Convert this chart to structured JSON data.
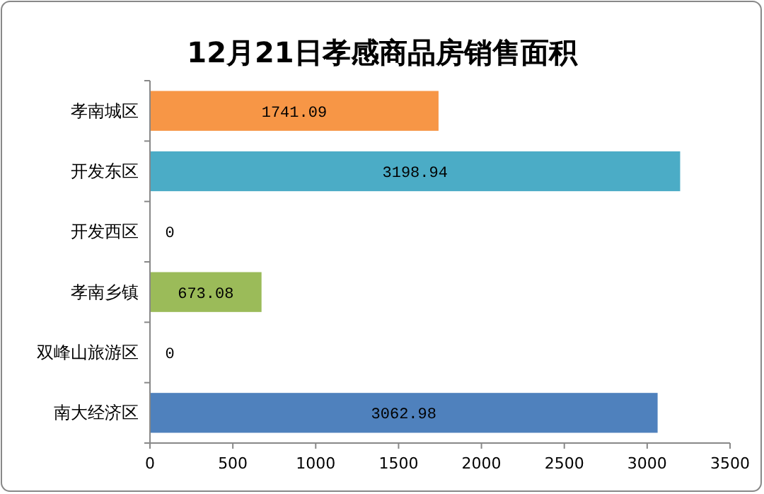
{
  "chart_data": {
    "type": "bar",
    "orientation": "horizontal",
    "title": "12月21日孝感商品房销售面积",
    "categories": [
      "孝南城区",
      "开发东区",
      "开发西区",
      "孝南乡镇",
      "双峰山旅游区",
      "南大经济区"
    ],
    "values": [
      1741.09,
      3198.94,
      0,
      673.08,
      0,
      3062.98
    ],
    "colors": [
      "#f79646",
      "#4bacc6",
      "#9bbb59",
      "#9bbb59",
      "#4f81bd",
      "#4f81bd"
    ],
    "xlim": [
      0,
      3500
    ],
    "xticks": [
      0,
      500,
      1000,
      1500,
      2000,
      2500,
      3000,
      3500
    ],
    "data_labels": true
  }
}
